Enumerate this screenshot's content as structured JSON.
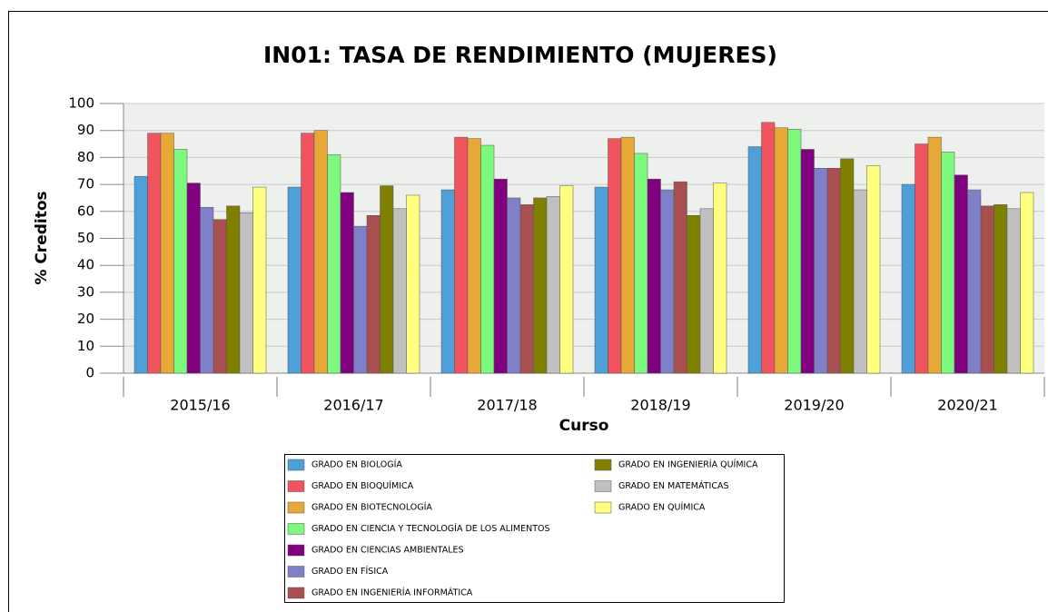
{
  "chart_data": {
    "type": "bar",
    "title": "IN01: TASA DE RENDIMIENTO (MUJERES)",
    "x_label": "Curso",
    "y_label": "% Creditos",
    "categories": [
      "2015/16",
      "2016/17",
      "2017/18",
      "2018/19",
      "2019/20",
      "2020/21"
    ],
    "series": [
      {
        "name": "GRADO EN BIOLOGÍA",
        "color": "#4f9fd8",
        "values": [
          73,
          69,
          68,
          69,
          84,
          70
        ]
      },
      {
        "name": "GRADO EN BIOQUÍMICA",
        "color": "#f0545f",
        "values": [
          89,
          89,
          87.5,
          87,
          93,
          85
        ]
      },
      {
        "name": "GRADO EN BIOTECNOLOGÍA",
        "color": "#e8a838",
        "values": [
          89,
          90,
          87,
          87.5,
          91,
          87.5
        ]
      },
      {
        "name": "GRADO EN CIENCIA Y TECNOLOGÍA DE LOS ALIMENTOS",
        "color": "#7dfa7d",
        "values": [
          83,
          81,
          84.5,
          81.5,
          90.5,
          82
        ]
      },
      {
        "name": "GRADO EN CIENCIAS AMBIENTALES",
        "color": "#800080",
        "values": [
          70.5,
          67,
          72,
          72,
          83,
          73.5
        ]
      },
      {
        "name": "GRADO EN FÍSICA",
        "color": "#8080c8",
        "values": [
          61.5,
          54.5,
          65,
          68,
          76,
          68
        ]
      },
      {
        "name": "GRADO EN INGENIERÍA INFORMÁTICA",
        "color": "#a85050",
        "values": [
          57,
          58.5,
          62.5,
          71,
          76,
          62
        ]
      },
      {
        "name": "GRADO EN INGENIERÍA QUÍMICA",
        "color": "#808000",
        "values": [
          62,
          69.5,
          65,
          58.5,
          79.5,
          62.5
        ]
      },
      {
        "name": "GRADO EN MATEMÁTICAS",
        "color": "#c0c0c0",
        "values": [
          59.5,
          61,
          65.5,
          61,
          68,
          61
        ]
      },
      {
        "name": "GRADO EN QUÍMICA",
        "color": "#ffff80",
        "values": [
          69,
          66,
          69.5,
          70.5,
          77,
          67
        ]
      }
    ],
    "ylim": [
      0,
      100
    ],
    "yticks": [
      0,
      10,
      20,
      30,
      40,
      50,
      60,
      70,
      80,
      90,
      100
    ],
    "grid": true,
    "legend": "bottom"
  }
}
